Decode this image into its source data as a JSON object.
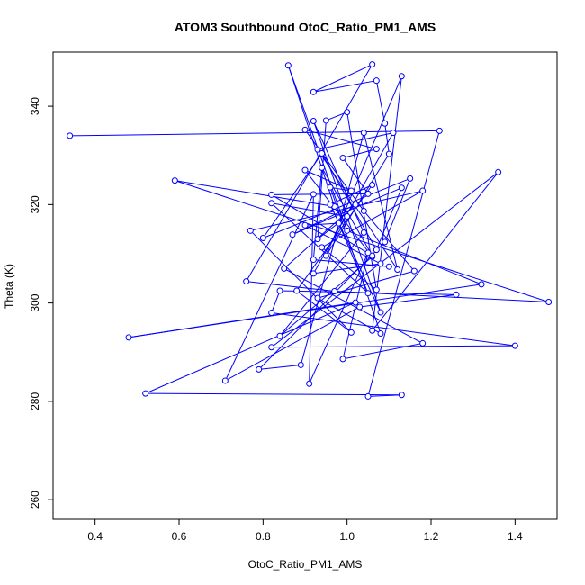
{
  "chart_data": {
    "type": "scatter",
    "title": "ATOM3 Southbound OtoC_Ratio_PM1_AMS",
    "xlabel": "OtoC_Ratio_PM1_AMS",
    "ylabel": "Theta (K)",
    "xlim": [
      0.3,
      1.5
    ],
    "ylim": [
      256,
      351
    ],
    "x_ticks": [
      0.4,
      0.6,
      0.8,
      1.0,
      1.2,
      1.4
    ],
    "x_tick_labels": [
      "0.4",
      "0.6",
      "0.8",
      "1.0",
      "1.2",
      "1.4"
    ],
    "y_ticks": [
      260,
      280,
      300,
      320,
      340
    ],
    "y_tick_labels": [
      "260",
      "280",
      "300",
      "320",
      "340"
    ],
    "grid": false,
    "markers": "open-circles",
    "connected": true,
    "series": [
      {
        "color": "#0000ff",
        "points": [
          [
            0.34,
            334.0
          ],
          [
            1.22,
            335.0
          ],
          [
            1.05,
            281.0
          ],
          [
            1.13,
            281.3
          ],
          [
            0.52,
            281.6
          ],
          [
            1.02,
            300.1
          ],
          [
            0.48,
            293.0
          ],
          [
            1.32,
            303.8
          ],
          [
            1.0,
            314.7
          ],
          [
            0.86,
            348.3
          ],
          [
            0.97,
            319.6
          ],
          [
            0.59,
            324.9
          ],
          [
            1.48,
            300.2
          ],
          [
            0.97,
            302.4
          ],
          [
            0.76,
            304.4
          ],
          [
            1.06,
            348.5
          ],
          [
            0.92,
            342.9
          ],
          [
            1.07,
            345.2
          ],
          [
            1.09,
            336.5
          ],
          [
            1.1,
            330.3
          ],
          [
            0.95,
            309.6
          ],
          [
            1.13,
            346.1
          ],
          [
            1.06,
            294.4
          ],
          [
            1.36,
            326.6
          ],
          [
            0.82,
            291.0
          ],
          [
            1.4,
            291.3
          ],
          [
            0.82,
            298.0
          ],
          [
            0.84,
            302.5
          ],
          [
            1.26,
            301.7
          ],
          [
            1.03,
            299.2
          ],
          [
            0.71,
            284.2
          ],
          [
            0.92,
            322.1
          ],
          [
            0.91,
            283.6
          ],
          [
            1.05,
            310.2
          ],
          [
            0.99,
            288.6
          ],
          [
            1.18,
            291.8
          ],
          [
            0.85,
            307.0
          ],
          [
            1.02,
            320.0
          ],
          [
            0.87,
            313.9
          ],
          [
            1.13,
            323.4
          ],
          [
            1.07,
            310.8
          ],
          [
            0.94,
            330.4
          ],
          [
            0.8,
            313.2
          ],
          [
            1.15,
            325.3
          ],
          [
            1.09,
            312.4
          ],
          [
            0.79,
            286.5
          ],
          [
            0.89,
            287.4
          ],
          [
            1.04,
            334.6
          ],
          [
            1.12,
            306.8
          ],
          [
            0.93,
            331.2
          ],
          [
            1.11,
            334.6
          ],
          [
            0.92,
            306.0
          ],
          [
            1.08,
            308.0
          ],
          [
            0.9,
            315.8
          ],
          [
            0.98,
            316.2
          ],
          [
            1.05,
            302.0
          ],
          [
            0.82,
            320.3
          ],
          [
            1.0,
            317.6
          ],
          [
            0.93,
            313.0
          ],
          [
            0.95,
            337.1
          ],
          [
            1.0,
            338.8
          ],
          [
            1.07,
            302.7
          ],
          [
            0.94,
            311.3
          ],
          [
            1.18,
            322.8
          ],
          [
            0.77,
            314.7
          ],
          [
            1.01,
            294.0
          ],
          [
            0.88,
            302.5
          ],
          [
            1.06,
            324.0
          ],
          [
            0.96,
            320.0
          ],
          [
            1.08,
            298.1
          ],
          [
            0.92,
            337.0
          ],
          [
            1.04,
            314.3
          ],
          [
            0.84,
            293.3
          ],
          [
            1.06,
            309.4
          ],
          [
            0.9,
            327.0
          ],
          [
            1.01,
            322.8
          ],
          [
            0.96,
            323.5
          ],
          [
            1.08,
            293.8
          ],
          [
            0.93,
            301.0
          ],
          [
            1.16,
            306.5
          ],
          [
            1.04,
            318.7
          ],
          [
            0.9,
            335.2
          ],
          [
            1.07,
            331.3
          ],
          [
            0.99,
            329.5
          ],
          [
            1.05,
            322.2
          ],
          [
            0.82,
            322.0
          ],
          [
            1.06,
            309.6
          ],
          [
            0.94,
            327.5
          ],
          [
            0.92,
            308.8
          ],
          [
            1.1,
            307.4
          ]
        ]
      }
    ]
  }
}
